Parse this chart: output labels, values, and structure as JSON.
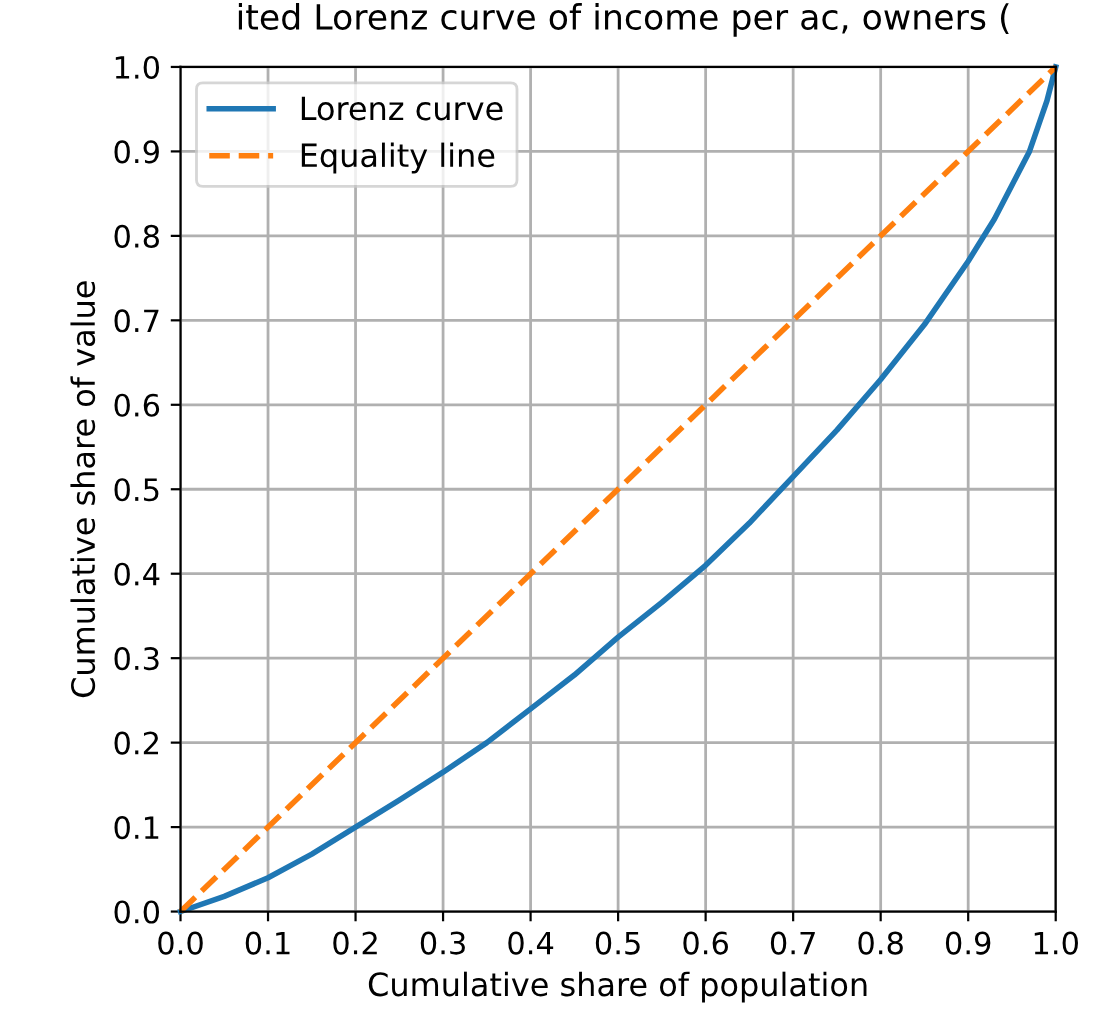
{
  "chart_data": {
    "type": "line",
    "title": "ited Lorenz curve of income per ac, owners (",
    "xlabel": "Cumulative share of population",
    "ylabel": "Cumulative share of value",
    "series": [
      {
        "name": "Lorenz curve",
        "color": "#1f77b4",
        "line_style": "solid",
        "x": [
          0,
          0.05,
          0.1,
          0.15,
          0.2,
          0.25,
          0.3,
          0.35,
          0.4,
          0.45,
          0.5,
          0.55,
          0.6,
          0.65,
          0.7,
          0.75,
          0.8,
          0.85,
          0.9,
          0.93,
          0.95,
          0.97,
          0.98,
          0.99,
          1.0
        ],
        "values": [
          0,
          0.018,
          0.04,
          0.068,
          0.1,
          0.132,
          0.165,
          0.2,
          0.24,
          0.28,
          0.325,
          0.366,
          0.41,
          0.46,
          0.515,
          0.57,
          0.63,
          0.695,
          0.77,
          0.82,
          0.86,
          0.9,
          0.93,
          0.96,
          1.0
        ]
      },
      {
        "name": "Equality line",
        "color": "#ff7f0e",
        "line_style": "dashed",
        "x": [
          0,
          1
        ],
        "values": [
          0,
          1
        ]
      }
    ],
    "xlim": [
      0,
      1
    ],
    "ylim": [
      0,
      1
    ],
    "xticks": [
      {
        "value": 0,
        "label": "0.0"
      },
      0.1,
      0.2,
      0.3,
      0.4,
      0.5,
      0.6,
      0.7,
      0.8,
      0.9,
      {
        "value": 1,
        "label": "1.0"
      }
    ],
    "yticks": [
      {
        "value": 0,
        "label": "0.0"
      },
      0.1,
      0.2,
      0.3,
      0.4,
      0.5,
      0.6,
      0.7,
      0.8,
      0.9,
      {
        "value": 1,
        "label": "1.0"
      }
    ],
    "grid": true,
    "legend": "top left"
  }
}
